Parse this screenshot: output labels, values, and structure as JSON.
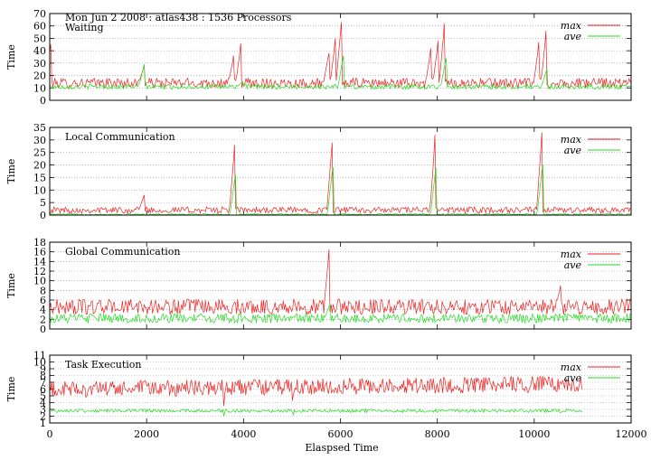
{
  "page_title": "Mon Jun 2 2008 : atlas438 : 1536 Processors",
  "xlabel": "Elaspsed Time",
  "colors": {
    "max": "#ee2222",
    "ave": "#22dd22",
    "grid": "#999999"
  },
  "chart_data": [
    {
      "type": "line",
      "panel_title": "Waiting",
      "ylabel": "Time",
      "xlim": [
        0,
        12000
      ],
      "ylim": [
        0,
        70
      ],
      "yticks": [
        0,
        10,
        20,
        30,
        40,
        50,
        60,
        70
      ],
      "xticks": [
        0,
        2000,
        4000,
        6000,
        8000,
        10000,
        12000
      ],
      "show_x_tick_labels": false,
      "legend": [
        "max",
        "ave"
      ],
      "x_end": 12000,
      "series": [
        {
          "name": "max",
          "base": 14,
          "noise": 4,
          "spikes": [
            [
              20,
              45
            ],
            [
              1950,
              28
            ],
            [
              3800,
              36
            ],
            [
              3950,
              46
            ],
            [
              5760,
              38
            ],
            [
              5900,
              50
            ],
            [
              6020,
              63
            ],
            [
              7870,
              42
            ],
            [
              8020,
              48
            ],
            [
              8150,
              62
            ],
            [
              10100,
              47
            ],
            [
              10250,
              56
            ]
          ]
        },
        {
          "name": "ave",
          "base": 11,
          "noise": 2,
          "spikes": [
            [
              1950,
              29
            ],
            [
              3980,
              15
            ],
            [
              6060,
              36
            ],
            [
              8180,
              34
            ],
            [
              10260,
              25
            ]
          ]
        }
      ]
    },
    {
      "type": "line",
      "panel_title": "Local Communication",
      "ylabel": "Time",
      "xlim": [
        0,
        12000
      ],
      "ylim": [
        0,
        35
      ],
      "yticks": [
        0,
        5,
        10,
        15,
        20,
        25,
        30,
        35
      ],
      "xticks": [
        0,
        2000,
        4000,
        6000,
        8000,
        10000,
        12000
      ],
      "show_x_tick_labels": false,
      "legend": [
        "max",
        "ave"
      ],
      "x_end": 12000,
      "series": [
        {
          "name": "max",
          "base": 2,
          "noise": 1.3,
          "spikes": [
            [
              1950,
              8
            ],
            [
              3820,
              28
            ],
            [
              5830,
              29
            ],
            [
              7960,
              32
            ],
            [
              10160,
              33
            ]
          ]
        },
        {
          "name": "ave",
          "base": 0.3,
          "noise": 0.3,
          "spikes": [
            [
              3830,
              16
            ],
            [
              5840,
              19
            ],
            [
              7970,
              19
            ],
            [
              10170,
              20
            ]
          ]
        }
      ]
    },
    {
      "type": "line",
      "panel_title": "Global Communication",
      "ylabel": "Time",
      "xlim": [
        0,
        12000
      ],
      "ylim": [
        0,
        18
      ],
      "yticks": [
        0,
        2,
        4,
        6,
        8,
        10,
        12,
        14,
        16,
        18
      ],
      "xticks": [
        0,
        2000,
        4000,
        6000,
        8000,
        10000,
        12000
      ],
      "show_x_tick_labels": false,
      "legend": [
        "max",
        "ave"
      ],
      "x_end": 12000,
      "series": [
        {
          "name": "max",
          "base": 4.6,
          "noise": 1.6,
          "spikes": [
            [
              5770,
              16.5
            ],
            [
              10550,
              9
            ]
          ]
        },
        {
          "name": "ave",
          "base": 2.2,
          "noise": 1.0,
          "spikes": [
            [
              5780,
              5
            ]
          ]
        }
      ]
    },
    {
      "type": "line",
      "panel_title": "Task Execution",
      "ylabel": "Time",
      "xlim": [
        0,
        12000
      ],
      "ylim": [
        1,
        11
      ],
      "yticks": [
        1,
        2,
        3,
        4,
        5,
        6,
        7,
        8,
        9,
        10,
        11
      ],
      "xticks": [
        0,
        2000,
        4000,
        6000,
        8000,
        10000,
        12000
      ],
      "xtick_labels": [
        "0",
        "2000",
        "4000",
        "6000",
        "8000",
        "10000",
        "12000"
      ],
      "show_x_tick_labels": true,
      "legend": [
        "max",
        "ave"
      ],
      "x_end": 11000,
      "series": [
        {
          "name": "max",
          "base": 6.4,
          "noise": 1.2,
          "trend": 8e-05,
          "spikes": [
            [
              3600,
              3.5
            ],
            [
              5000,
              4.3
            ]
          ]
        },
        {
          "name": "ave",
          "base": 2.8,
          "noise": 0.25,
          "spikes": [
            [
              3600,
              2.0
            ],
            [
              5030,
              2.2
            ]
          ]
        }
      ]
    }
  ]
}
